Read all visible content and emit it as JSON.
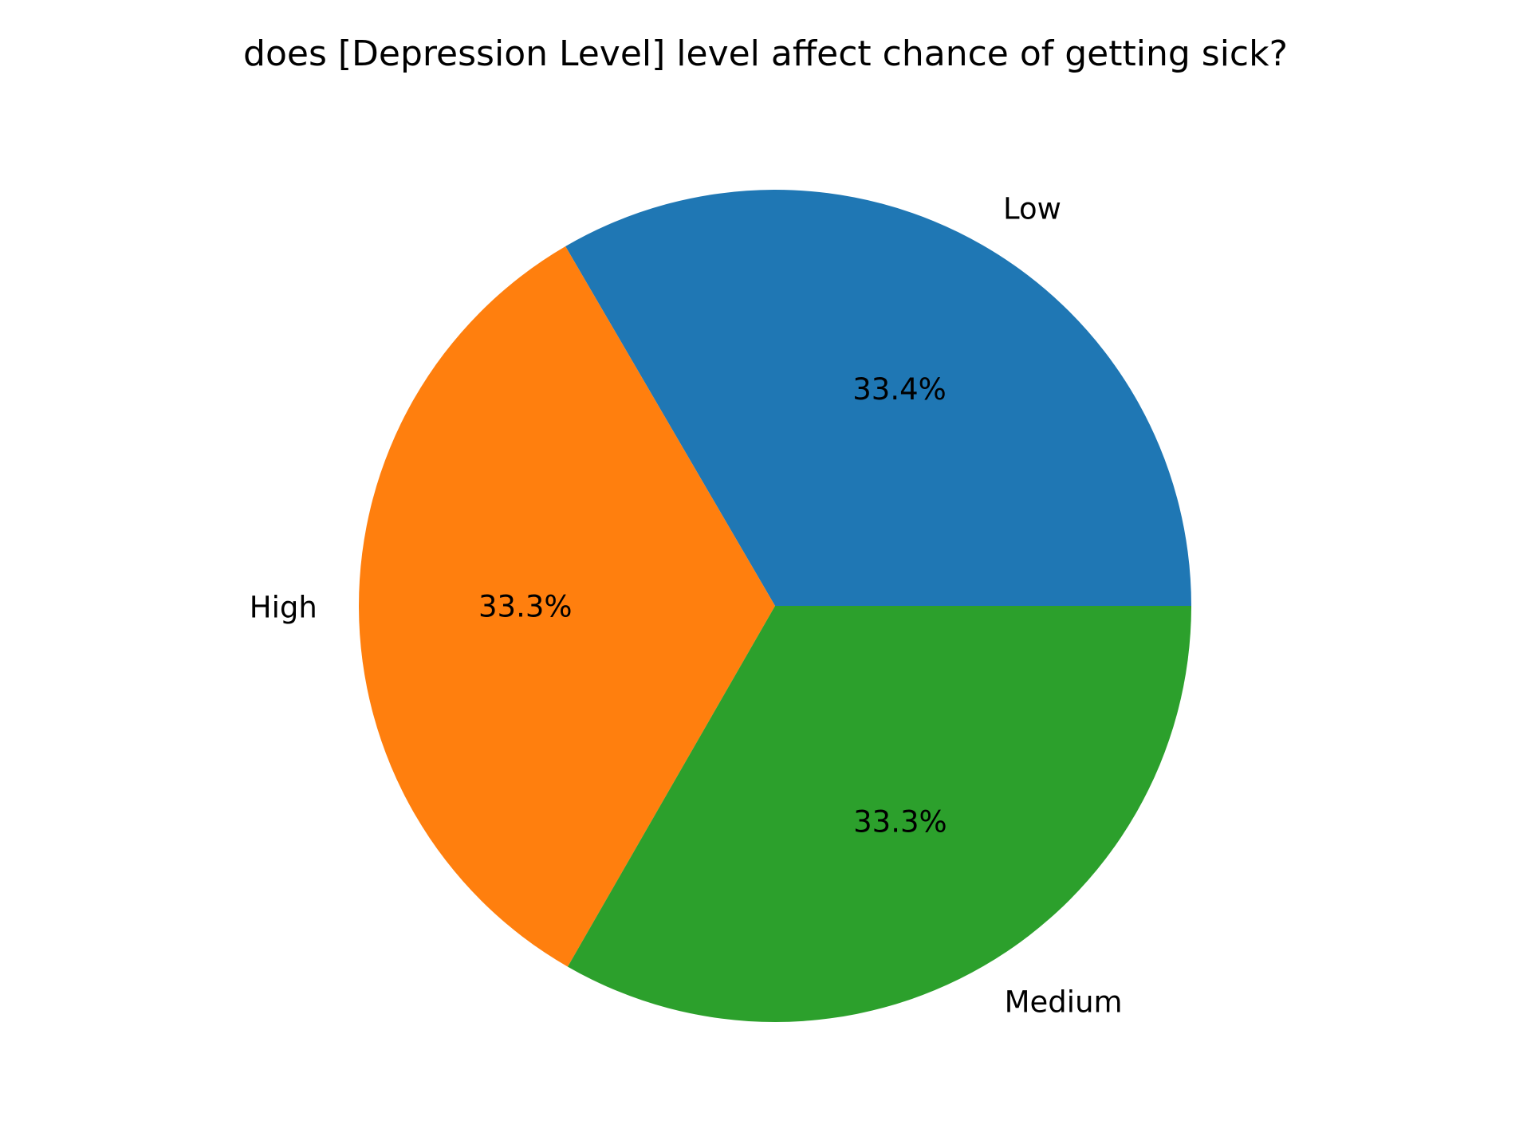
{
  "chart_data": {
    "type": "pie",
    "title": "does [Depression Level] level affect chance of getting sick?",
    "start_angle_deg": 0,
    "direction": "counterclockwise",
    "slices": [
      {
        "label": "Low",
        "value": 33.4,
        "pct_label": "33.4%",
        "color": "#1f77b4"
      },
      {
        "label": "High",
        "value": 33.3,
        "pct_label": "33.3%",
        "color": "#ff7f0e"
      },
      {
        "label": "Medium",
        "value": 33.3,
        "pct_label": "33.3%",
        "color": "#2ca02c"
      }
    ]
  }
}
